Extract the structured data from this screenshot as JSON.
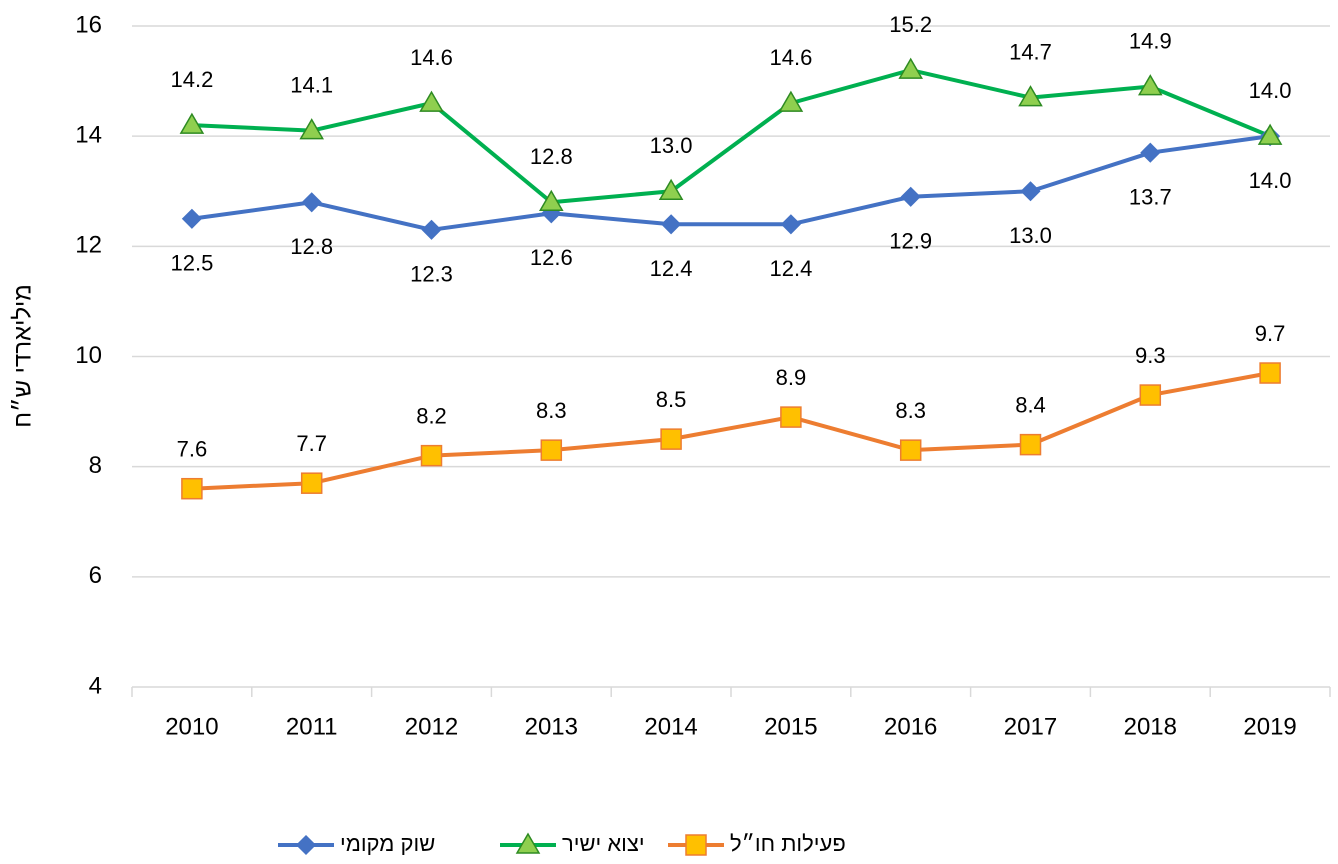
{
  "chart_data": {
    "type": "line",
    "y_label": "מיליארדי ש״ח",
    "categories": [
      "2010",
      "2011",
      "2012",
      "2013",
      "2014",
      "2015",
      "2016",
      "2017",
      "2018",
      "2019"
    ],
    "series": [
      {
        "name": "שוק מקומי",
        "color": "#4472c4",
        "marker": "diamond",
        "marker_fill": "#4472c4",
        "label_position": "below",
        "values": [
          12.5,
          12.8,
          12.3,
          12.6,
          12.4,
          12.4,
          12.9,
          13.0,
          13.7,
          14.0
        ],
        "value_labels": [
          "12.5",
          "12.8",
          "12.3",
          "12.6",
          "12.4",
          "12.4",
          "12.9",
          "13.0",
          "13.7",
          "14.0"
        ]
      },
      {
        "name": "יצוא ישיר",
        "color": "#00b050",
        "marker": "triangle",
        "marker_fill": "#8fcf4f",
        "label_position": "above",
        "values": [
          14.2,
          14.1,
          14.6,
          12.8,
          13.0,
          14.6,
          15.2,
          14.7,
          14.9,
          14.0
        ],
        "value_labels": [
          "14.2",
          "14.1",
          "14.6",
          "12.8",
          "13.0",
          "14.6",
          "15.2",
          "14.7",
          "14.9",
          "14.0"
        ]
      },
      {
        "name": "פעילות חו״ל",
        "color": "#ed7d31",
        "marker": "square",
        "marker_fill": "#ffc000",
        "label_position": "above",
        "values": [
          7.6,
          7.7,
          8.2,
          8.3,
          8.5,
          8.9,
          8.3,
          8.4,
          9.3,
          9.7
        ],
        "value_labels": [
          "7.6",
          "7.7",
          "8.2",
          "8.3",
          "8.5",
          "8.9",
          "8.3",
          "8.4",
          "9.3",
          "9.7"
        ]
      }
    ],
    "ylim": [
      4,
      16
    ],
    "yticks": [
      4,
      6,
      8,
      10,
      12,
      14,
      16
    ],
    "grid": true,
    "legend": "bottom"
  }
}
